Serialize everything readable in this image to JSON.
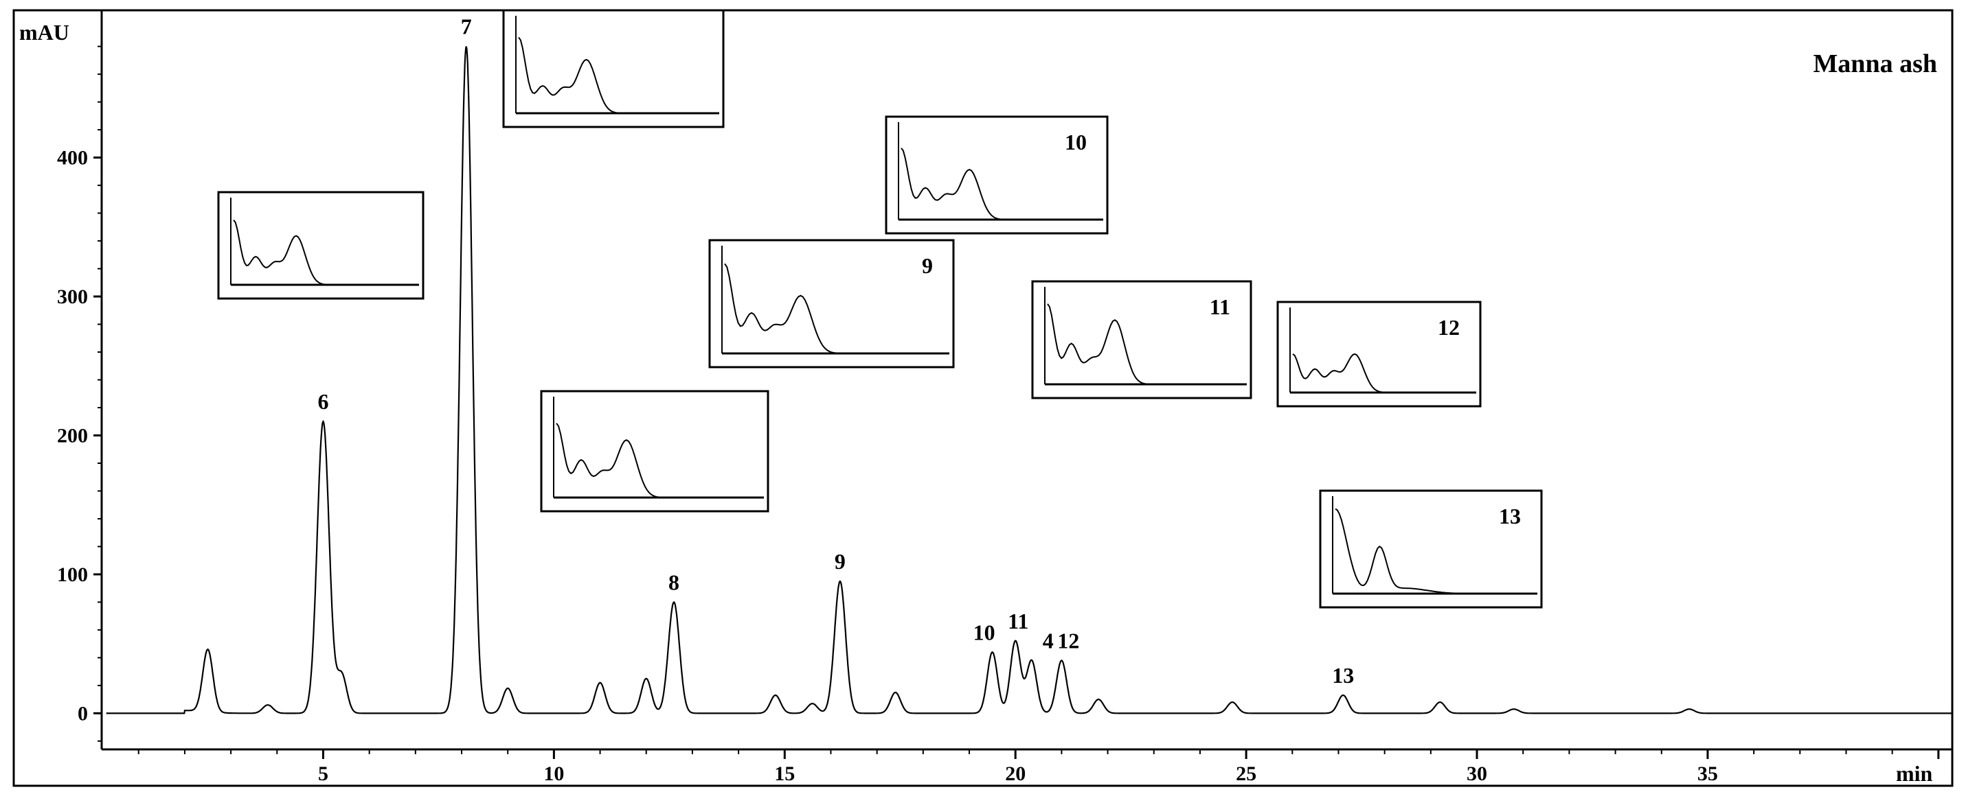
{
  "chart_data": {
    "type": "line",
    "title": "Manna ash",
    "xlabel": "min",
    "ylabel": "mAU",
    "xlim": [
      0.2,
      40.3
    ],
    "ylim": [
      -26,
      506
    ],
    "xticks": [
      5,
      10,
      15,
      20,
      25,
      30,
      35
    ],
    "yticks": [
      0,
      100,
      200,
      300,
      400
    ],
    "peaks": [
      {
        "label": "6",
        "x": 5.0,
        "y": 210
      },
      {
        "label": "7",
        "x": 8.1,
        "y": 480
      },
      {
        "label": "8",
        "x": 12.6,
        "y": 80
      },
      {
        "label": "9",
        "x": 16.2,
        "y": 95
      },
      {
        "label": "10",
        "x": 19.5,
        "y": 44
      },
      {
        "label": "11",
        "x": 20.0,
        "y": 52
      },
      {
        "label": "4",
        "x": 20.35,
        "y": 38
      },
      {
        "label": "12",
        "x": 21.0,
        "y": 38
      },
      {
        "label": "13",
        "x": 27.1,
        "y": 13
      }
    ],
    "minor_peaks": [
      {
        "x": 2.5,
        "y": 45
      },
      {
        "x": 3.8,
        "y": 6
      },
      {
        "x": 5.4,
        "y": 28
      },
      {
        "x": 9.0,
        "y": 18
      },
      {
        "x": 11.0,
        "y": 22
      },
      {
        "x": 12.0,
        "y": 25
      },
      {
        "x": 14.8,
        "y": 13
      },
      {
        "x": 15.6,
        "y": 7
      },
      {
        "x": 17.4,
        "y": 15
      },
      {
        "x": 21.8,
        "y": 10
      },
      {
        "x": 24.7,
        "y": 8
      },
      {
        "x": 29.2,
        "y": 8
      },
      {
        "x": 30.8,
        "y": 3
      },
      {
        "x": 34.6,
        "y": 3
      }
    ],
    "insets": [
      {
        "label": ""
      },
      {
        "label": ""
      },
      {
        "label": ""
      },
      {
        "label": "9"
      },
      {
        "label": "10"
      },
      {
        "label": "11"
      },
      {
        "label": "12"
      },
      {
        "label": "13"
      }
    ],
    "grid": false
  }
}
